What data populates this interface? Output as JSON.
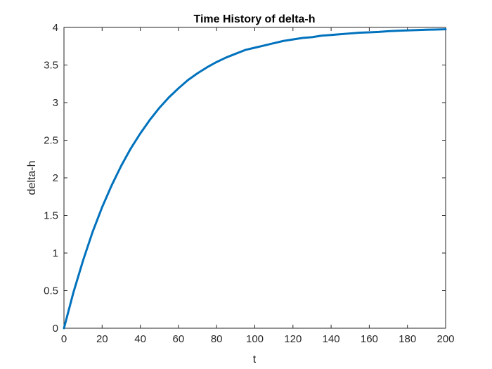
{
  "chart_data": {
    "type": "line",
    "title": "Time History of delta-h",
    "xlabel": "t",
    "ylabel": "delta-h",
    "xlim": [
      0,
      200
    ],
    "ylim": [
      0,
      4
    ],
    "xticks": [
      0,
      20,
      40,
      60,
      80,
      100,
      120,
      140,
      160,
      180,
      200
    ],
    "xtick_labels": [
      "0",
      "20",
      "40",
      "60",
      "80",
      "100",
      "120",
      "140",
      "160",
      "180",
      "200"
    ],
    "yticks": [
      0,
      0.5,
      1,
      1.5,
      2,
      2.5,
      3,
      3.5,
      4
    ],
    "ytick_labels": [
      "0",
      "0.5",
      "1",
      "1.5",
      "2",
      "2.5",
      "3",
      "3.5",
      "4"
    ],
    "grid": false,
    "legend": "none",
    "series": [
      {
        "color": "#0072BD",
        "x": [
          0,
          5,
          10,
          15,
          20,
          25,
          30,
          35,
          40,
          45,
          50,
          55,
          60,
          65,
          70,
          75,
          80,
          85,
          90,
          95,
          100,
          105,
          110,
          115,
          120,
          125,
          130,
          135,
          140,
          145,
          150,
          155,
          160,
          165,
          170,
          175,
          180,
          185,
          190,
          195,
          200
        ],
        "y": [
          0,
          0.48,
          0.9,
          1.28,
          1.61,
          1.9,
          2.16,
          2.39,
          2.59,
          2.77,
          2.93,
          3.07,
          3.19,
          3.3,
          3.39,
          3.47,
          3.54,
          3.6,
          3.65,
          3.7,
          3.73,
          3.76,
          3.79,
          3.82,
          3.84,
          3.86,
          3.87,
          3.89,
          3.9,
          3.91,
          3.92,
          3.93,
          3.935,
          3.94,
          3.95,
          3.955,
          3.96,
          3.965,
          3.97,
          3.972,
          3.975
        ]
      }
    ]
  }
}
